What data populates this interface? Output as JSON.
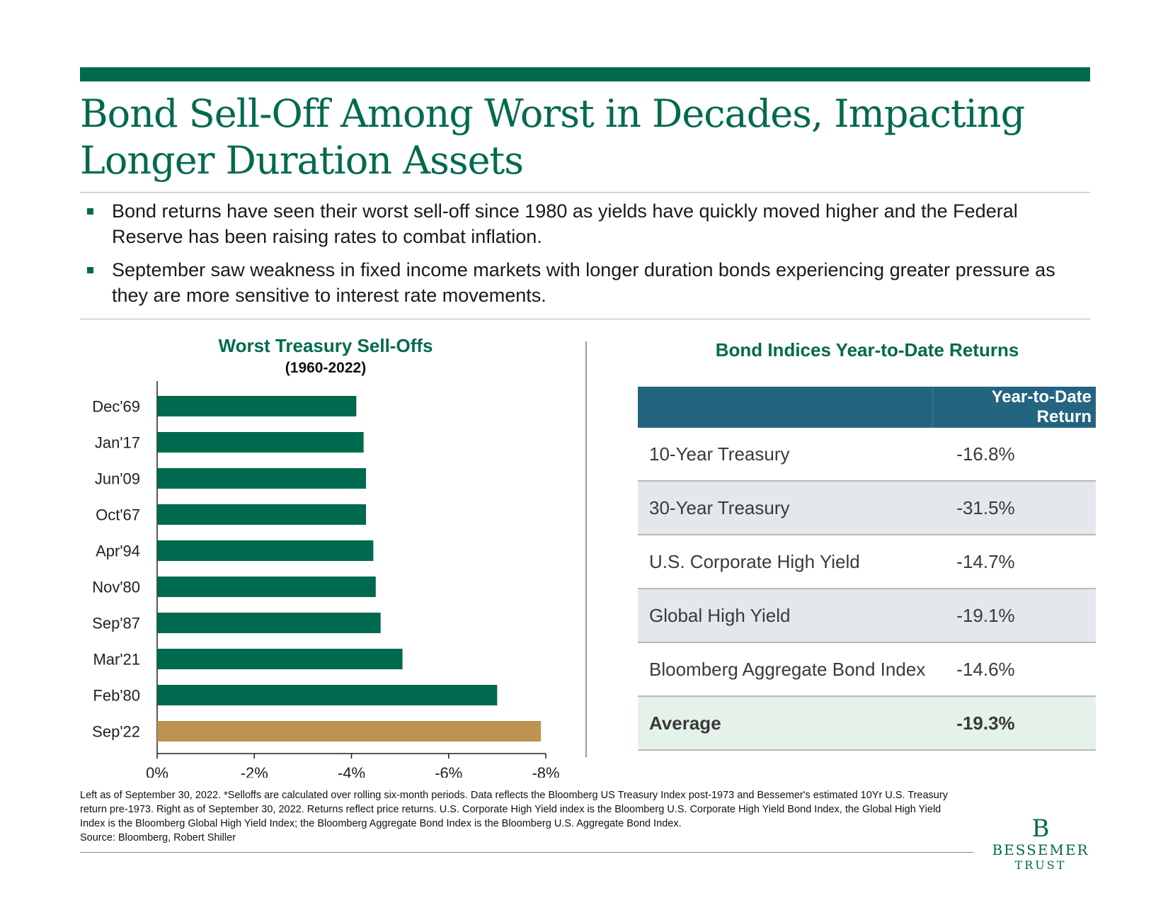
{
  "title": "Bond Sell-Off Among Worst in Decades, Impacting Longer Duration Assets",
  "bullets": [
    "Bond returns have seen their worst sell-off since 1980 as yields have quickly moved higher and the Federal Reserve has been raising rates to combat inflation.",
    "September saw weakness in fixed income markets with longer duration bonds experiencing greater pressure as they are more sensitive to interest rate movements."
  ],
  "chart_data": {
    "type": "bar",
    "orientation": "horizontal",
    "title": "Worst Treasury Sell-Offs",
    "subtitle": "(1960-2022)",
    "categories": [
      "Dec'69",
      "Jan'17",
      "Jun'09",
      "Oct'67",
      "Apr'94",
      "Nov'80",
      "Sep'87",
      "Mar'21",
      "Feb'80",
      "Sep'22"
    ],
    "values": [
      -4.1,
      -4.25,
      -4.3,
      -4.3,
      -4.45,
      -4.5,
      -4.6,
      -5.05,
      -7.0,
      -7.9
    ],
    "highlight_category": "Sep'22",
    "colors": {
      "default": "#006a4e",
      "highlight": "#be9350"
    },
    "xlim": [
      0,
      -8
    ],
    "xticks": [
      0,
      -2,
      -4,
      -6,
      -8
    ],
    "xtick_labels": [
      "0%",
      "-2%",
      "-4%",
      "-6%",
      "-8%"
    ],
    "grid": false
  },
  "table": {
    "title": "Bond Indices Year-to-Date Returns",
    "header": {
      "name": "",
      "value": "Year-to-Date Return"
    },
    "rows": [
      {
        "name": "10-Year Treasury",
        "value": "-16.8%"
      },
      {
        "name": "30-Year Treasury",
        "value": "-31.5%"
      },
      {
        "name": "U.S. Corporate High Yield",
        "value": "-14.7%"
      },
      {
        "name": "Global High Yield",
        "value": "-19.1%"
      },
      {
        "name": "Bloomberg Aggregate Bond Index",
        "value": "-14.6%"
      },
      {
        "name": "Average",
        "value": "-19.3%"
      }
    ]
  },
  "footnote": {
    "text": "Left as of September 30, 2022. *Selloffs are calculated over rolling six-month periods. Data reflects the Bloomberg US Treasury Index post-1973 and Bessemer's estimated 10Yr U.S. Treasury return pre-1973. Right as of September 30, 2022. Returns reflect price returns. U.S. Corporate High Yield index is the Bloomberg U.S. Corporate High Yield Bond Index, the Global High Yield Index is the Bloomberg Global High Yield Index; the Bloomberg Aggregate Bond Index is the Bloomberg U.S. Aggregate Bond Index.",
    "source": "Source: Bloomberg, Robert Shiller"
  },
  "logo": {
    "mark": "B",
    "line1": "BESSEMER",
    "line2": "TRUST"
  },
  "colors": {
    "brand_green": "#006a4e",
    "table_header": "#236581",
    "gold": "#be9350"
  }
}
